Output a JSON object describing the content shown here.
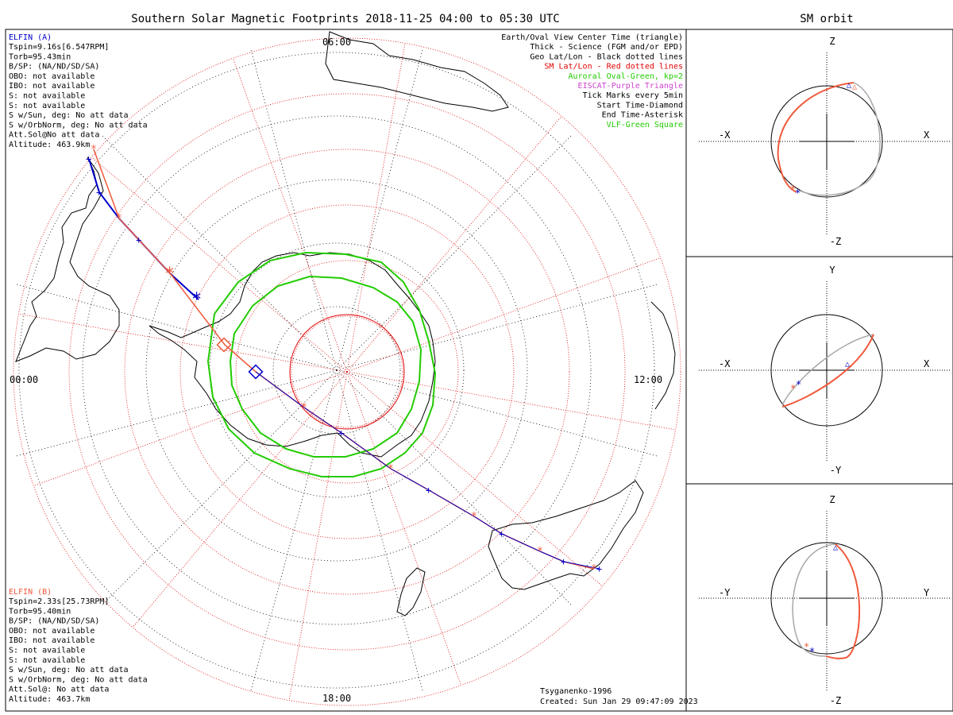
{
  "title": "Southern Solar Magnetic Footprints 2018-11-25 04:00 to 05:30 UTC",
  "orbit_title": "SM orbit",
  "clock": {
    "top": "06:00",
    "left": "00:00",
    "right": "12:00",
    "bottom": "18:00"
  },
  "elfin_a": {
    "name": "ELFIN (A)",
    "color": "#0000cc",
    "lines": [
      "Tspin=9.16s[6.547RPM]",
      "Torb=95.43min",
      "B/SP: (NA/ND/SD/SA)",
      "OBO: not available",
      "IBO: not available",
      "S: not available",
      "S: not available",
      "S w/Sun, deg: No att data",
      "S w/OrbNorm, deg: No att data",
      "Att.Sol@No att data",
      "Altitude: 463.9km"
    ]
  },
  "elfin_b": {
    "name": "ELFIN (B)",
    "color": "#f05a3c",
    "lines": [
      "Tspin=2.33s[25.73RPM]",
      "Torb=95.40min",
      "B/SP: (NA/ND/SD/SA)",
      "OBO: not available",
      "IBO: not available",
      "S: not available",
      "S: not available",
      "S w/Sun, deg: No att data",
      "S w/OrbNorm, deg: No att data",
      "Att.Sol@: No att data",
      "Altitude: 463.7km"
    ]
  },
  "legend": [
    {
      "text": "Earth/Oval View Center Time (triangle)",
      "color": "#000000"
    },
    {
      "text": "Thick - Science (FGM and/or EPD)",
      "color": "#000000"
    },
    {
      "text": "Geo Lat/Lon - Black dotted lines",
      "color": "#000000"
    },
    {
      "text": "SM Lat/Lon - Red dotted lines",
      "color": "#e00000"
    },
    {
      "text": "Auroral Oval-Green, kp=2",
      "color": "#22cc00"
    },
    {
      "text": "EISCAT-Purple Triangle",
      "color": "#cc44cc"
    },
    {
      "text": "Tick Marks every 5min",
      "color": "#000000"
    },
    {
      "text": "Start Time-Diamond",
      "color": "#000000"
    },
    {
      "text": "End Time-Asterisk",
      "color": "#000000"
    },
    {
      "text": "VLF-Green Square",
      "color": "#22cc00"
    }
  ],
  "footer": {
    "model": "Tsyganenko-1996",
    "created": "Created: Sun Jan 29 09:47:09 2023"
  },
  "orbit_panels": [
    {
      "name": "xz",
      "top": "Z",
      "bottom": "-Z",
      "left": "-X",
      "right": "X"
    },
    {
      "name": "xy",
      "top": "Y",
      "bottom": "-Y",
      "left": "-X",
      "right": "X"
    },
    {
      "name": "yz",
      "top": "Z",
      "bottom": "-Z",
      "left": "-Y",
      "right": "Y"
    }
  ],
  "colors": {
    "elfin_a": "#0000cc",
    "elfin_b": "#f05a3c",
    "oval": "#22cc00",
    "sm_grid": "#e00000",
    "orbit_gray": "#a8a8a8"
  },
  "chart_data": {
    "type": "scatter",
    "projection": "south polar",
    "title": "Southern Solar Magnetic Footprints 2018-11-25 04:00 to 05:30 UTC",
    "tick_labels": [
      "00:00",
      "06:00",
      "12:00",
      "18:00"
    ],
    "series": [
      {
        "name": "ELFIN (A)",
        "color": "#0000cc"
      },
      {
        "name": "ELFIN (B)",
        "color": "#f05a3c"
      }
    ]
  }
}
